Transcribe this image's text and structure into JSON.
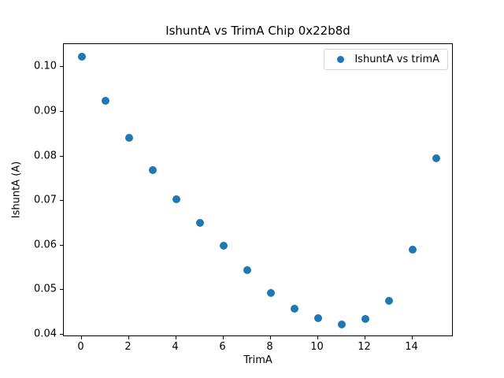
{
  "chart_data": {
    "type": "scatter",
    "title": "IshuntA vs TrimA Chip 0x22b8d",
    "xlabel": "TrimA",
    "ylabel": "IshuntA (A)",
    "x": [
      0,
      1,
      2,
      3,
      4,
      5,
      6,
      7,
      8,
      9,
      10,
      11,
      12,
      13,
      14,
      15
    ],
    "series": [
      {
        "name": "IshuntA vs trimA",
        "color": "#1f77b4",
        "values": [
          0.1023,
          0.0924,
          0.0841,
          0.0769,
          0.0704,
          0.065,
          0.0599,
          0.0544,
          0.0494,
          0.0458,
          0.0436,
          0.0423,
          0.0434,
          0.0476,
          0.059,
          0.0795
        ]
      }
    ],
    "legend": {
      "position": "upper right",
      "entries": [
        "IshuntA vs trimA"
      ]
    },
    "xlim": [
      -0.75,
      15.75
    ],
    "ylim": [
      0.0394,
      0.1052
    ],
    "xticks": [
      0,
      2,
      4,
      6,
      8,
      10,
      12,
      14
    ],
    "yticks": [
      0.04,
      0.05,
      0.06,
      0.07,
      0.08,
      0.09,
      0.1
    ],
    "ytick_format_decimals": 2,
    "grid": false,
    "marker": "circle"
  }
}
